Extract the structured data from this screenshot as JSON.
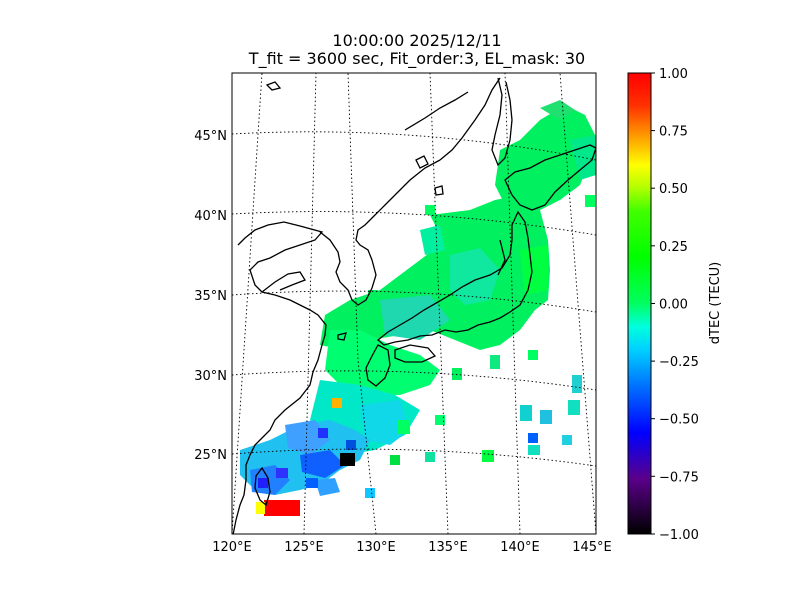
{
  "title": {
    "line1": "10:00:00 2025/12/11",
    "line2": "T_fit = 3600 sec, Fit_order:3, EL_mask: 30"
  },
  "map": {
    "lat_ticks": [
      "25°N",
      "30°N",
      "35°N",
      "40°N",
      "45°N"
    ],
    "lon_ticks": [
      "120°E",
      "125°E",
      "130°E",
      "135°E",
      "140°E",
      "145°E"
    ],
    "projection": "lambert conformal",
    "grid": "dotted",
    "land_outline": "black coastlines (Japan, Korea, China, Taiwan)"
  },
  "colorbar": {
    "label": "dTEC (TECU)",
    "ticks": [
      "1.00",
      "0.75",
      "0.50",
      "0.25",
      "0.00",
      "−0.25",
      "−0.50",
      "−0.75",
      "−1.00"
    ],
    "range": [
      -1.0,
      1.0
    ],
    "colormap": "nipy_spectral-like",
    "colors": [
      "#ff0000",
      "#ff8c00",
      "#ffff00",
      "#00ff00",
      "#00ffdd",
      "#0070ff",
      "#0000ff",
      "#5a008a",
      "#000000"
    ]
  },
  "dtec_field": {
    "description_values": "mostly near 0 TECU over Japan; cyan/blue (-0.25 to -0.5) near Ryukyu/Taiwan; red (+1.0) patch near 22N 123E; black (-1.0) near 24.5N 128E"
  }
}
